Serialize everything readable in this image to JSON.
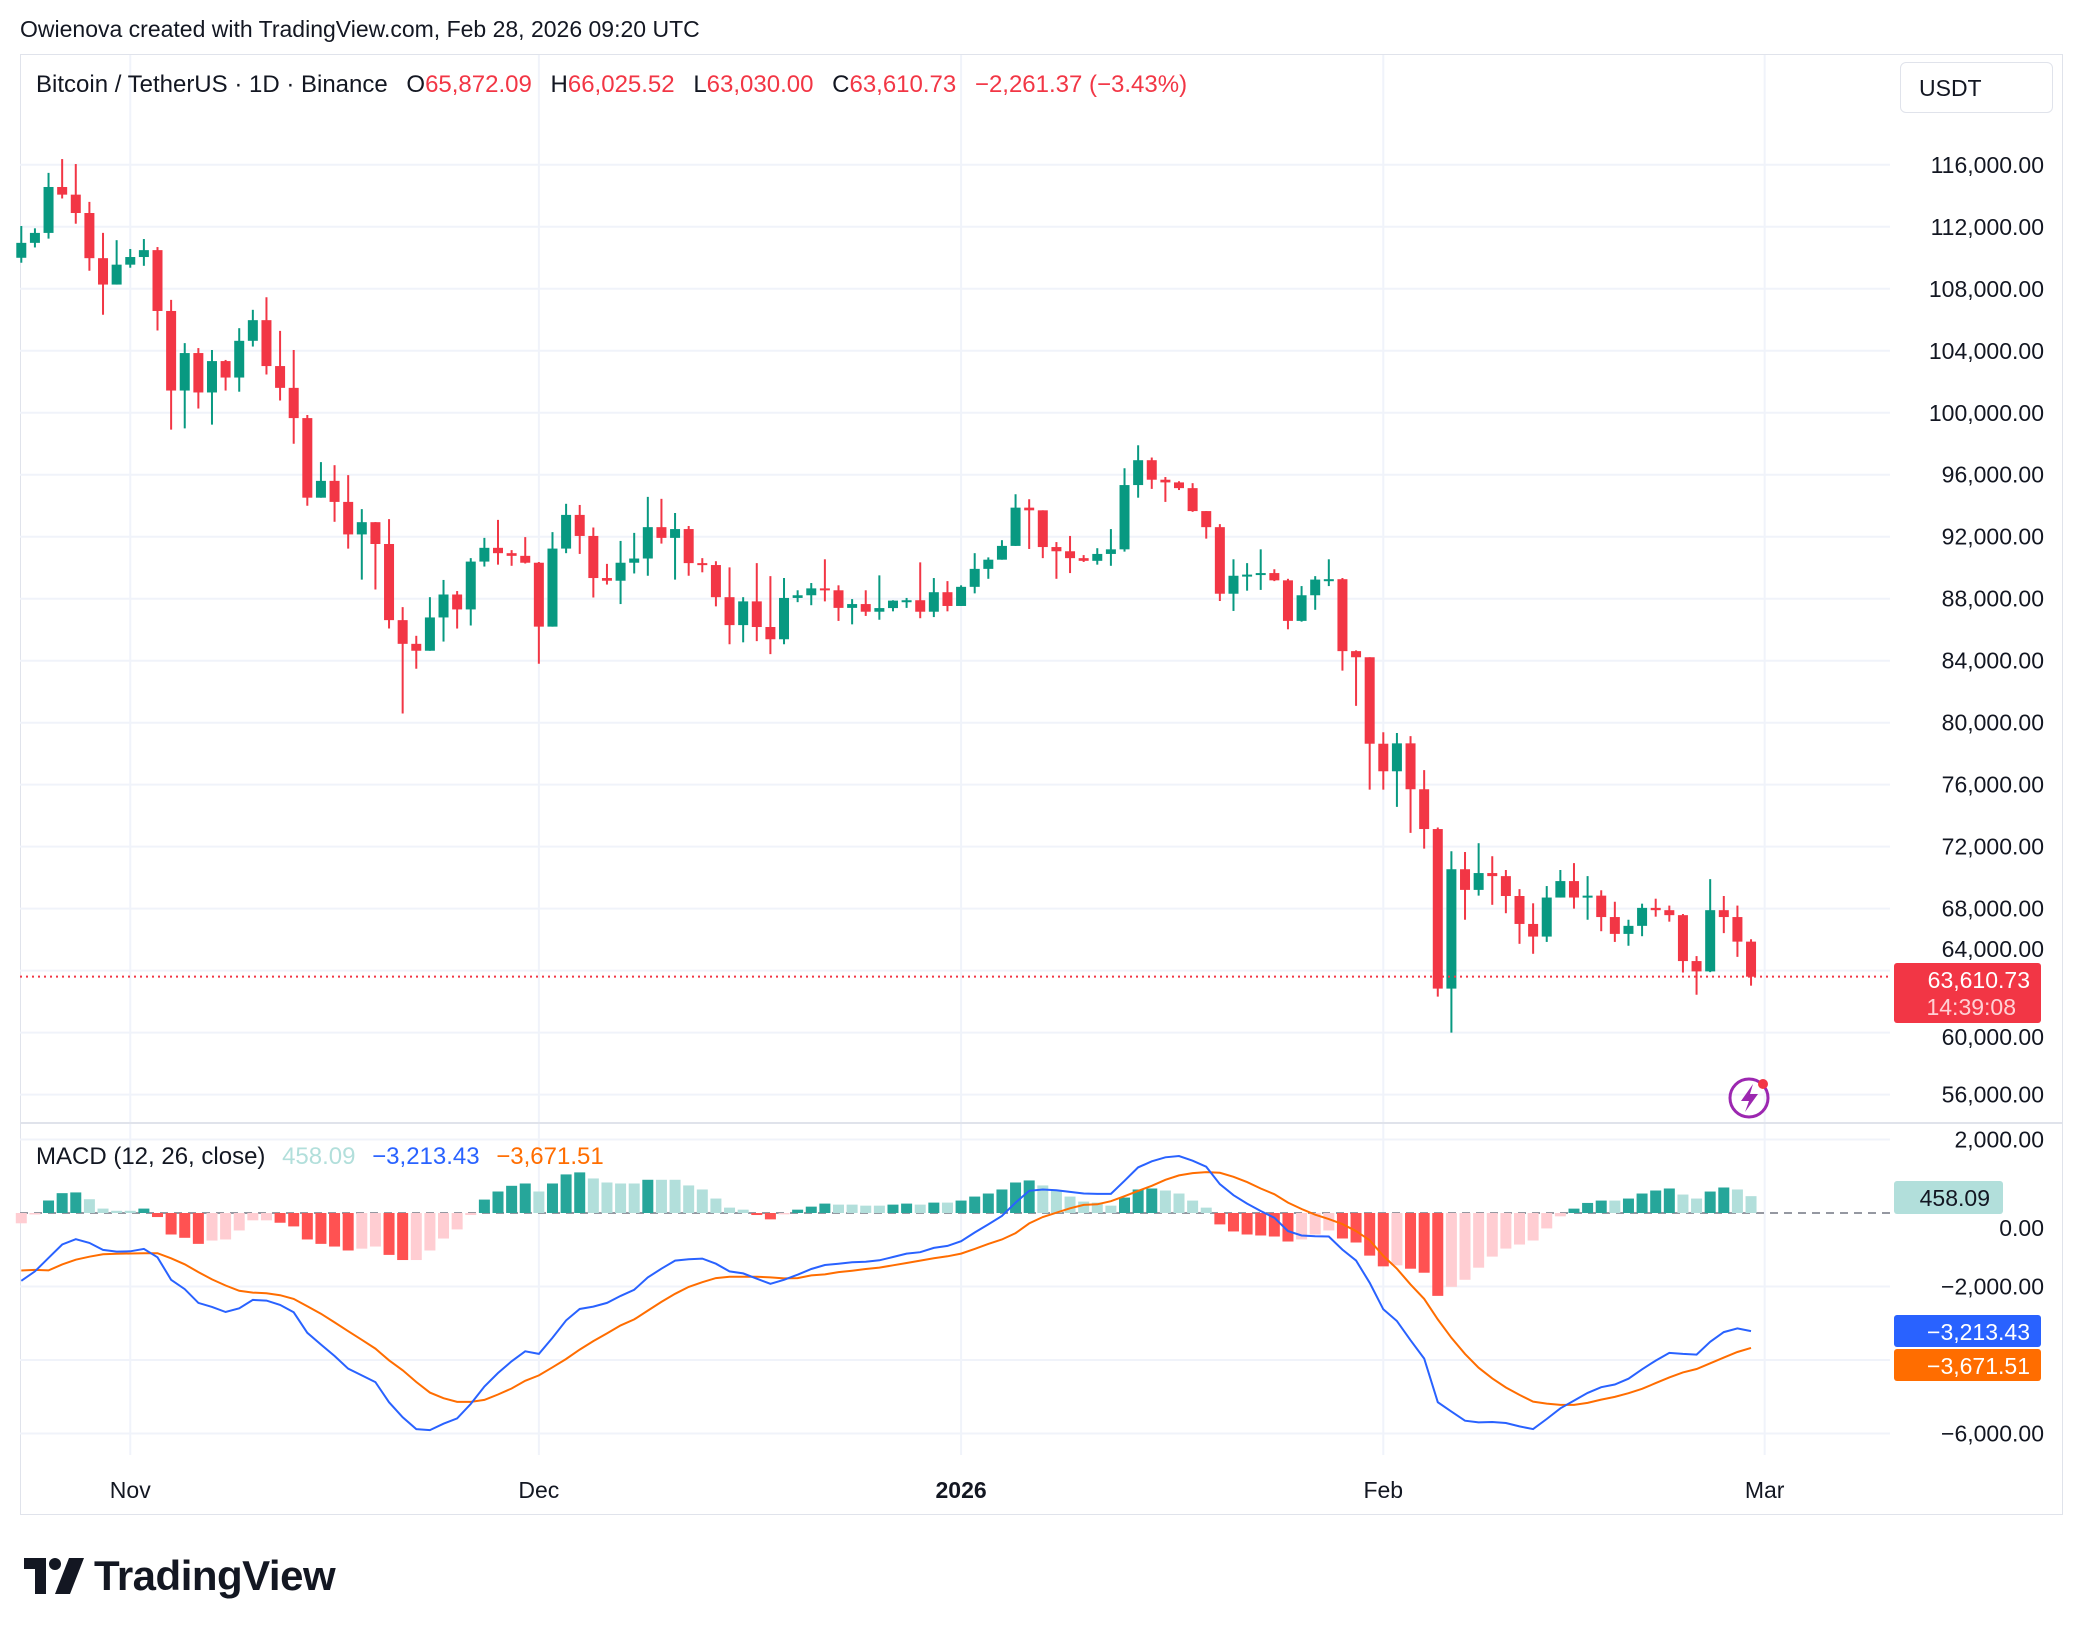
{
  "header": {
    "attribution": "Owienova created with TradingView.com, Feb 28, 2026 09:20 UTC"
  },
  "legend": {
    "symbol": "Bitcoin / TetherUS · 1D · Binance",
    "open_label": "O",
    "open": "65,872.09",
    "high_label": "H",
    "high": "66,025.52",
    "low_label": "L",
    "low": "63,030.00",
    "close_label": "C",
    "close": "63,610.73",
    "change": "−2,261.37 (−3.43%)"
  },
  "currency_button": "USDT",
  "last_price": {
    "price": "63,610.73",
    "countdown": "14:39:08"
  },
  "macd_legend": {
    "title": "MACD (12, 26, close)",
    "histogram": "458.09",
    "macd": "−3,213.43",
    "signal": "−3,671.51"
  },
  "macd_labels": {
    "histogram": "458.09",
    "macd": "−3,213.43",
    "signal": "−3,671.51"
  },
  "logo": {
    "text": "TradingView"
  },
  "colors": {
    "up": "#089981",
    "down": "#F23645",
    "hist_up_strong": "#26a69a",
    "hist_up_weak": "#b2dfdb",
    "hist_down_strong": "#ff5252",
    "hist_down_weak": "#ffcdd2",
    "macd_line": "#2962ff",
    "signal_line": "#ff6d00"
  },
  "chart_data": [
    {
      "type": "candlestick",
      "title": "Bitcoin / TetherUS · 1D · Binance",
      "ylim": [
        54000,
        118000
      ],
      "grid": true,
      "y_ticks": [
        "116,000.00",
        "112,000.00",
        "108,000.00",
        "104,000.00",
        "100,000.00",
        "96,000.00",
        "92,000.00",
        "88,000.00",
        "84,000.00",
        "80,000.00",
        "76,000.00",
        "72,000.00",
        "68,000.00",
        "64,000.00",
        "60,000.00",
        "56,000.00"
      ],
      "x_ticks": [
        {
          "text": "Nov",
          "date": "2025-11-01",
          "bold": false
        },
        {
          "text": "Dec",
          "date": "2025-12-01",
          "bold": false
        },
        {
          "text": "2026",
          "date": "2026-01-01",
          "bold": true
        },
        {
          "text": "Feb",
          "date": "2026-02-01",
          "bold": false
        },
        {
          "text": "Mar",
          "date": "2026-03-01",
          "bold": false
        }
      ],
      "dates": [
        "2025-10-24",
        "2025-10-25",
        "2025-10-26",
        "2025-10-27",
        "2025-10-28",
        "2025-10-29",
        "2025-10-30",
        "2025-10-31",
        "2025-11-01",
        "2025-11-02",
        "2025-11-03",
        "2025-11-04",
        "2025-11-05",
        "2025-11-06",
        "2025-11-07",
        "2025-11-08",
        "2025-11-09",
        "2025-11-10",
        "2025-11-11",
        "2025-11-12",
        "2025-11-13",
        "2025-11-14",
        "2025-11-15",
        "2025-11-16",
        "2025-11-17",
        "2025-11-18",
        "2025-11-19",
        "2025-11-20",
        "2025-11-21",
        "2025-11-22",
        "2025-11-23",
        "2025-11-24",
        "2025-11-25",
        "2025-11-26",
        "2025-11-27",
        "2025-11-28",
        "2025-11-29",
        "2025-11-30",
        "2025-12-01",
        "2025-12-02",
        "2025-12-03",
        "2025-12-04",
        "2025-12-05",
        "2025-12-06",
        "2025-12-07",
        "2025-12-08",
        "2025-12-09",
        "2025-12-10",
        "2025-12-11",
        "2025-12-12",
        "2025-12-13",
        "2025-12-14",
        "2025-12-15",
        "2025-12-16",
        "2025-12-17",
        "2025-12-18",
        "2025-12-19",
        "2025-12-20",
        "2025-12-21",
        "2025-12-22",
        "2025-12-23",
        "2025-12-24",
        "2025-12-25",
        "2025-12-26",
        "2025-12-27",
        "2025-12-28",
        "2025-12-29",
        "2025-12-30",
        "2025-12-31",
        "2026-01-01",
        "2026-01-02",
        "2026-01-03",
        "2026-01-04",
        "2026-01-05",
        "2026-01-06",
        "2026-01-07",
        "2026-01-08",
        "2026-01-09",
        "2026-01-10",
        "2026-01-11",
        "2026-01-12",
        "2026-01-13",
        "2026-01-14",
        "2026-01-15",
        "2026-01-16",
        "2026-01-17",
        "2026-01-18",
        "2026-01-19",
        "2026-01-20",
        "2026-01-21",
        "2026-01-22",
        "2026-01-23",
        "2026-01-24",
        "2026-01-25",
        "2026-01-26",
        "2026-01-27",
        "2026-01-28",
        "2026-01-29",
        "2026-01-30",
        "2026-01-31",
        "2026-02-01",
        "2026-02-02",
        "2026-02-03",
        "2026-02-04",
        "2026-02-05",
        "2026-02-06",
        "2026-02-07",
        "2026-02-08",
        "2026-02-09",
        "2026-02-10",
        "2026-02-11",
        "2026-02-12",
        "2026-02-13",
        "2026-02-14",
        "2026-02-15",
        "2026-02-16",
        "2026-02-17",
        "2026-02-18",
        "2026-02-19",
        "2026-02-20",
        "2026-02-21",
        "2026-02-22",
        "2026-02-23",
        "2026-02-24",
        "2026-02-25",
        "2026-02-26",
        "2026-02-27",
        "2026-02-28"
      ],
      "open": [
        110000,
        110963,
        111605,
        114568,
        114074,
        112889,
        109975,
        108272,
        109556,
        110049,
        110494,
        106568,
        101433,
        103852,
        101309,
        103334,
        102272,
        104642,
        105975,
        103013,
        101606,
        99655,
        94519,
        95605,
        94247,
        92149,
        92939,
        91531,
        86618,
        85088,
        84643,
        86791,
        88272,
        87309,
        90396,
        91284,
        90939,
        90766,
        90322,
        86198,
        91235,
        93408,
        92050,
        89334,
        89161,
        90322,
        90594,
        92618,
        91926,
        92495,
        90297,
        90173,
        88099,
        86297,
        87828,
        86174,
        85384,
        88050,
        88223,
        88667,
        88544,
        87408,
        87655,
        87161,
        87396,
        87877,
        87902,
        87161,
        88420,
        87532,
        88766,
        89926,
        90519,
        91408,
        93877,
        93704,
        91334,
        91062,
        90618,
        90445,
        90889,
        91186,
        95334,
        96938,
        95679,
        95506,
        95136,
        93655,
        92618,
        88322,
        89482,
        89556,
        89655,
        89186,
        86569,
        88223,
        89235,
        89260,
        84618,
        84223,
        78643,
        76865,
        78667,
        75705,
        73137,
        62841,
        70544,
        69211,
        70297,
        70100,
        68816,
        67013,
        66198,
        68717,
        69779,
        68717,
        68840,
        67458,
        66371,
        66890,
        68050,
        67902,
        67581,
        64618,
        63952,
        67902,
        67458,
        65872.09
      ],
      "high": [
        112050,
        111901,
        115481,
        116370,
        116049,
        113605,
        111605,
        111136,
        110568,
        111210,
        110692,
        107284,
        104494,
        104173,
        104050,
        103408,
        105457,
        106642,
        107457,
        105284,
        104050,
        99852,
        96815,
        96617,
        95975,
        93778,
        92939,
        93136,
        87457,
        85606,
        88100,
        89211,
        88495,
        90618,
        91926,
        93087,
        91136,
        91976,
        90371,
        92297,
        94124,
        94050,
        92593,
        90248,
        91729,
        92248,
        94569,
        94445,
        93532,
        92692,
        90618,
        90420,
        90025,
        88099,
        90297,
        89457,
        89334,
        88544,
        89013,
        90544,
        88865,
        87976,
        88544,
        89507,
        87902,
        88050,
        90346,
        89334,
        89136,
        88865,
        90939,
        90667,
        91778,
        94741,
        94420,
        93704,
        91655,
        92050,
        90815,
        91260,
        92494,
        96420,
        97901,
        97111,
        95852,
        95580,
        95457,
        93655,
        92815,
        90544,
        90297,
        91186,
        89902,
        89285,
        88816,
        89457,
        90544,
        89334,
        84667,
        84223,
        79383,
        79334,
        79136,
        76939,
        73236,
        71704,
        71655,
        72223,
        71383,
        70495,
        69260,
        68346,
        69458,
        70495,
        70939,
        70100,
        69186,
        68445,
        67285,
        68322,
        68643,
        68198,
        67655,
        64939,
        69902,
        68816,
        68198,
        66025.52
      ],
      "low": [
        109680,
        110667,
        111235,
        113827,
        112198,
        109160,
        106321,
        108272,
        109358,
        109482,
        105309,
        98914,
        98988,
        100272,
        99235,
        101433,
        101358,
        104272,
        102470,
        100790,
        98001,
        93999,
        94519,
        92964,
        91235,
        89235,
        88593,
        86075,
        80594,
        83482,
        84643,
        85235,
        86075,
        86273,
        90075,
        90198,
        90124,
        90272,
        83803,
        86198,
        90939,
        90890,
        88075,
        88914,
        87655,
        89630,
        89482,
        91557,
        89235,
        89482,
        89704,
        87507,
        85062,
        85186,
        85260,
        84421,
        85062,
        87778,
        87581,
        87828,
        86568,
        86346,
        86890,
        86643,
        87186,
        87408,
        86741,
        86815,
        87186,
        87532,
        88346,
        89285,
        90519,
        91408,
        91210,
        90618,
        89285,
        89655,
        90371,
        90198,
        90124,
        91038,
        94519,
        95087,
        94247,
        95013,
        93605,
        91877,
        87853,
        87211,
        88519,
        88568,
        89136,
        86026,
        86519,
        87285,
        88815,
        83359,
        81087,
        75680,
        75680,
        74568,
        72889,
        71877,
        62323,
        60001,
        67285,
        68840,
        68248,
        67705,
        65730,
        65088,
        65853,
        68717,
        68001,
        67285,
        66544,
        65853,
        65606,
        66223,
        67482,
        67161,
        63878,
        62445,
        63902,
        66421,
        64889,
        63030.0
      ],
      "close": [
        110963,
        111605,
        114568,
        114074,
        112889,
        109975,
        108272,
        109556,
        110049,
        110494,
        106568,
        101433,
        103852,
        101309,
        103334,
        102272,
        104642,
        105975,
        103013,
        101606,
        99655,
        94519,
        95605,
        94247,
        92149,
        92939,
        91531,
        86618,
        85088,
        84643,
        86791,
        88272,
        87309,
        90396,
        91284,
        90939,
        90766,
        90322,
        86198,
        91235,
        93408,
        92050,
        89334,
        89161,
        90322,
        90594,
        92618,
        91926,
        92495,
        90297,
        90173,
        88099,
        86297,
        87828,
        86174,
        85384,
        88050,
        88223,
        88667,
        88544,
        87408,
        87655,
        87161,
        87396,
        87877,
        87902,
        87161,
        88420,
        87532,
        88766,
        89926,
        90519,
        91408,
        93877,
        93704,
        91334,
        91062,
        90618,
        90445,
        90889,
        91186,
        95334,
        96938,
        95679,
        95506,
        95136,
        93655,
        92618,
        88322,
        89482,
        89556,
        89655,
        89186,
        86569,
        88223,
        89235,
        89260,
        84618,
        84223,
        78643,
        76865,
        78667,
        75705,
        73137,
        62841,
        70544,
        69211,
        70297,
        70100,
        68816,
        67013,
        66198,
        68717,
        69779,
        68717,
        68840,
        67458,
        66371,
        66890,
        68050,
        67902,
        67581,
        64618,
        63952,
        67902,
        67458,
        65872.09,
        63610.73
      ],
      "last_price": 63610.73
    },
    {
      "type": "macd",
      "title": "MACD (12, 26, close)",
      "ylim": [
        -6800,
        2400
      ],
      "grid": true,
      "y_ticks": [
        {
          "text": "2,000.00",
          "value": 2000
        },
        {
          "text": "0.00",
          "value": 0
        },
        {
          "text": "−2,000.00",
          "value": -2000
        },
        {
          "text": "−6,000.00",
          "value": -6000
        }
      ],
      "gridlines": [
        2000,
        -2000,
        -4000,
        -6000
      ],
      "macd": [
        -1844,
        -1589,
        -1223,
        -858,
        -712,
        -813,
        -1004,
        -1050,
        -1041,
        -977,
        -1205,
        -1817,
        -2072,
        -2447,
        -2556,
        -2693,
        -2593,
        -2365,
        -2383,
        -2502,
        -2702,
        -3259,
        -3579,
        -3890,
        -4236,
        -4419,
        -4602,
        -5149,
        -5560,
        -5880,
        -5907,
        -5734,
        -5588,
        -5195,
        -4720,
        -4355,
        -4035,
        -3762,
        -3835,
        -3396,
        -2922,
        -2611,
        -2547,
        -2447,
        -2255,
        -2091,
        -1753,
        -1516,
        -1296,
        -1260,
        -1242,
        -1379,
        -1589,
        -1643,
        -1789,
        -1926,
        -1817,
        -1680,
        -1525,
        -1415,
        -1379,
        -1342,
        -1324,
        -1287,
        -1196,
        -1105,
        -1068,
        -950,
        -895,
        -767,
        -530,
        -310,
        -82,
        283,
        603,
        640,
        621,
        575,
        530,
        520,
        520,
        876,
        1242,
        1406,
        1516,
        1552,
        1424,
        1260,
        785,
        484,
        256,
        55,
        -128,
        -493,
        -612,
        -630,
        -640,
        -995,
        -1296,
        -1900,
        -2620,
        -2940,
        -3460,
        -3962,
        -5149,
        -5405,
        -5651,
        -5697,
        -5688,
        -5715,
        -5807,
        -5880,
        -5606,
        -5314,
        -5104,
        -4894,
        -4739,
        -4666,
        -4510,
        -4254,
        -4017,
        -3807,
        -3835,
        -3853,
        -3506,
        -3241,
        -3141,
        -3213.43
      ],
      "signal": [
        -1564,
        -1549,
        -1563,
        -1398,
        -1272,
        -1188,
        -1124,
        -1110,
        -1101,
        -1097,
        -1095,
        -1232,
        -1397,
        -1607,
        -1806,
        -1973,
        -2118,
        -2165,
        -2183,
        -2237,
        -2337,
        -2539,
        -2739,
        -2977,
        -3216,
        -3449,
        -3689,
        -4009,
        -4280,
        -4600,
        -4887,
        -5039,
        -5141,
        -5140,
        -5085,
        -4940,
        -4775,
        -4565,
        -4420,
        -4199,
        -3972,
        -3716,
        -3487,
        -3277,
        -3058,
        -2894,
        -2657,
        -2420,
        -2200,
        -2010,
        -1882,
        -1772,
        -1735,
        -1734,
        -1734,
        -1753,
        -1780,
        -1771,
        -1698,
        -1671,
        -1607,
        -1570,
        -1524,
        -1487,
        -1424,
        -1361,
        -1296,
        -1233,
        -1178,
        -1105,
        -977,
        -840,
        -722,
        -547,
        -283,
        -110,
        9,
        128,
        220,
        237,
        320,
        456,
        602,
        739,
        904,
        1022,
        1086,
        1114,
        1095,
        986,
        841,
        667,
        512,
        283,
        108,
        -45,
        -165,
        -301,
        -493,
        -740,
        -1168,
        -1516,
        -1944,
        -2337,
        -2894,
        -3396,
        -3834,
        -4209,
        -4501,
        -4747,
        -4949,
        -5131,
        -5186,
        -5223,
        -5223,
        -5168,
        -5077,
        -5004,
        -4903,
        -4784,
        -4629,
        -4474,
        -4337,
        -4246,
        -4090,
        -3935,
        -3781,
        -3671.51
      ],
      "histogram": [
        -280,
        -40,
        340,
        540,
        560,
        375,
        120,
        60,
        60,
        120,
        -110,
        -585,
        -675,
        -840,
        -750,
        -720,
        -475,
        -200,
        -200,
        -265,
        -365,
        -720,
        -840,
        -913,
        -1020,
        -970,
        -913,
        -1140,
        -1280,
        -1280,
        -1020,
        -695,
        -447,
        -55,
        365,
        585,
        740,
        803,
        585,
        803,
        1050,
        1105,
        940,
        830,
        803,
        803,
        904,
        904,
        904,
        750,
        640,
        393,
        146,
        91,
        -55,
        -173,
        -37,
        91,
        173,
        256,
        228,
        228,
        200,
        200,
        228,
        256,
        228,
        283,
        283,
        338,
        447,
        530,
        640,
        830,
        886,
        750,
        612,
        447,
        310,
        283,
        200,
        420,
        640,
        667,
        612,
        530,
        338,
        146,
        -310,
        -502,
        -585,
        -612,
        -640,
        -776,
        -720,
        -585,
        -475,
        -694,
        -803,
        -1160,
        -1452,
        -1424,
        -1516,
        -1625,
        -2255,
        -2009,
        -1817,
        -1488,
        -1187,
        -968,
        -858,
        -749,
        -420,
        -91,
        119,
        274,
        338,
        338,
        393,
        530,
        612,
        667,
        502,
        393,
        584,
        694,
        640,
        458.09
      ]
    }
  ]
}
